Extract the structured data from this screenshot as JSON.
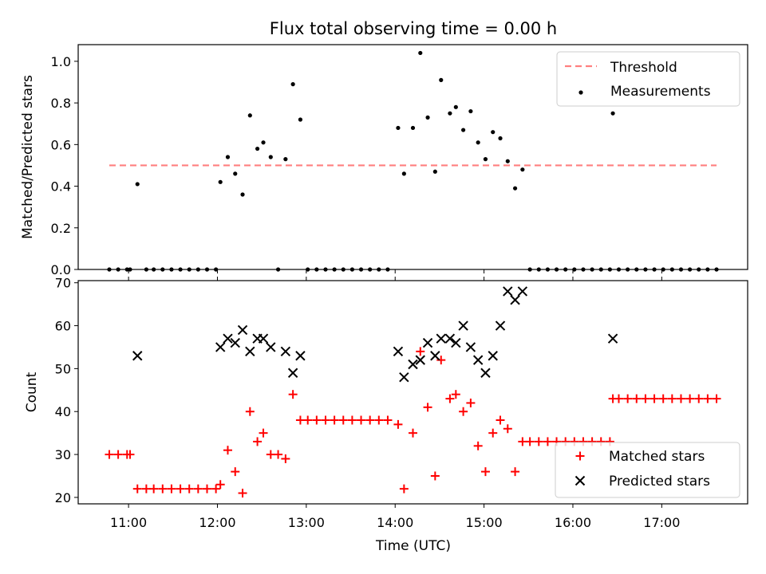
{
  "chart_data": [
    {
      "type": "scatter",
      "title": "Flux total observing time = 0.00 h",
      "xlabel": "",
      "ylabel": "Matched/Predicted stars",
      "xlim": [
        "10:26",
        "17:58"
      ],
      "ylim": [
        0,
        1.08
      ],
      "yticks": [
        0.0,
        0.2,
        0.4,
        0.6,
        0.8,
        1.0
      ],
      "ytick_labels": [
        "0.0",
        "0.2",
        "0.4",
        "0.6",
        "0.8",
        "1.0"
      ],
      "legend_position": "upper right",
      "grid": false,
      "series": [
        {
          "name": "Threshold",
          "kind": "dashed-line",
          "color": "#ff7f7f",
          "x": [
            "10:47",
            "17:37"
          ],
          "y": [
            0.5,
            0.5
          ]
        },
        {
          "name": "Measurements",
          "kind": "dots",
          "color": "#000000",
          "points": [
            [
              "10:47",
              0
            ],
            [
              "10:53",
              0
            ],
            [
              "10:59",
              0
            ],
            [
              "11:01",
              0
            ],
            [
              "11:06",
              0.41
            ],
            [
              "11:12",
              0
            ],
            [
              "11:17",
              0
            ],
            [
              "11:23",
              0
            ],
            [
              "11:29",
              0
            ],
            [
              "11:35",
              0
            ],
            [
              "11:41",
              0
            ],
            [
              "11:47",
              0
            ],
            [
              "11:53",
              0
            ],
            [
              "11:59",
              0
            ],
            [
              "12:02",
              0.42
            ],
            [
              "12:07",
              0.54
            ],
            [
              "12:12",
              0.46
            ],
            [
              "12:17",
              0.36
            ],
            [
              "12:22",
              0.74
            ],
            [
              "12:27",
              0.58
            ],
            [
              "12:31",
              0.61
            ],
            [
              "12:36",
              0.54
            ],
            [
              "12:41",
              0
            ],
            [
              "12:46",
              0.53
            ],
            [
              "12:51",
              0.89
            ],
            [
              "12:56",
              0.72
            ],
            [
              "13:01",
              0
            ],
            [
              "13:07",
              0
            ],
            [
              "13:13",
              0
            ],
            [
              "13:19",
              0
            ],
            [
              "13:25",
              0
            ],
            [
              "13:31",
              0
            ],
            [
              "13:37",
              0
            ],
            [
              "13:43",
              0
            ],
            [
              "13:49",
              0
            ],
            [
              "13:55",
              0
            ],
            [
              "14:02",
              0.68
            ],
            [
              "14:06",
              0.46
            ],
            [
              "14:12",
              0.68
            ],
            [
              "14:17",
              1.04
            ],
            [
              "14:22",
              0.73
            ],
            [
              "14:27",
              0.47
            ],
            [
              "14:31",
              0.91
            ],
            [
              "14:37",
              0.75
            ],
            [
              "14:41",
              0.78
            ],
            [
              "14:46",
              0.67
            ],
            [
              "14:51",
              0.76
            ],
            [
              "14:56",
              0.61
            ],
            [
              "15:01",
              0.53
            ],
            [
              "15:06",
              0.66
            ],
            [
              "15:11",
              0.63
            ],
            [
              "15:16",
              0.52
            ],
            [
              "15:21",
              0.39
            ],
            [
              "15:26",
              0.48
            ],
            [
              "15:31",
              0
            ],
            [
              "15:37",
              0
            ],
            [
              "15:43",
              0
            ],
            [
              "15:49",
              0
            ],
            [
              "15:55",
              0
            ],
            [
              "16:01",
              0
            ],
            [
              "16:07",
              0
            ],
            [
              "16:13",
              0
            ],
            [
              "16:19",
              0
            ],
            [
              "16:25",
              0
            ],
            [
              "16:27",
              0.75
            ],
            [
              "16:31",
              0
            ],
            [
              "16:37",
              0
            ],
            [
              "16:43",
              0
            ],
            [
              "16:49",
              0
            ],
            [
              "16:55",
              0
            ],
            [
              "17:01",
              0
            ],
            [
              "17:07",
              0
            ],
            [
              "17:13",
              0
            ],
            [
              "17:19",
              0
            ],
            [
              "17:25",
              0
            ],
            [
              "17:31",
              0
            ],
            [
              "17:37",
              0
            ]
          ]
        }
      ]
    },
    {
      "type": "scatter",
      "title": "",
      "xlabel": "Time (UTC)",
      "ylabel": "Count",
      "xlim": [
        "10:26",
        "17:58"
      ],
      "ylim": [
        18.5,
        70.5
      ],
      "yticks": [
        20,
        30,
        40,
        50,
        60,
        70
      ],
      "ytick_labels": [
        "20",
        "30",
        "40",
        "50",
        "60",
        "70"
      ],
      "xticks": [
        "11:00",
        "12:00",
        "13:00",
        "14:00",
        "15:00",
        "16:00",
        "17:00"
      ],
      "xtick_labels": [
        "11:00",
        "12:00",
        "13:00",
        "14:00",
        "15:00",
        "16:00",
        "17:00"
      ],
      "legend_position": "lower right",
      "grid": false,
      "series": [
        {
          "name": "Matched stars",
          "kind": "plus",
          "color": "#ff0000",
          "points": [
            [
              "10:47",
              30
            ],
            [
              "10:53",
              30
            ],
            [
              "10:59",
              30
            ],
            [
              "11:01",
              30
            ],
            [
              "11:06",
              22
            ],
            [
              "11:12",
              22
            ],
            [
              "11:17",
              22
            ],
            [
              "11:23",
              22
            ],
            [
              "11:29",
              22
            ],
            [
              "11:35",
              22
            ],
            [
              "11:41",
              22
            ],
            [
              "11:47",
              22
            ],
            [
              "11:53",
              22
            ],
            [
              "11:59",
              22
            ],
            [
              "12:02",
              23
            ],
            [
              "12:07",
              31
            ],
            [
              "12:12",
              26
            ],
            [
              "12:17",
              21
            ],
            [
              "12:22",
              40
            ],
            [
              "12:27",
              33
            ],
            [
              "12:31",
              35
            ],
            [
              "12:36",
              30
            ],
            [
              "12:41",
              30
            ],
            [
              "12:46",
              29
            ],
            [
              "12:51",
              44
            ],
            [
              "12:56",
              38
            ],
            [
              "13:01",
              38
            ],
            [
              "13:07",
              38
            ],
            [
              "13:13",
              38
            ],
            [
              "13:19",
              38
            ],
            [
              "13:25",
              38
            ],
            [
              "13:31",
              38
            ],
            [
              "13:37",
              38
            ],
            [
              "13:43",
              38
            ],
            [
              "13:49",
              38
            ],
            [
              "13:55",
              38
            ],
            [
              "14:02",
              37
            ],
            [
              "14:06",
              22
            ],
            [
              "14:12",
              35
            ],
            [
              "14:17",
              54
            ],
            [
              "14:22",
              41
            ],
            [
              "14:27",
              25
            ],
            [
              "14:31",
              52
            ],
            [
              "14:37",
              43
            ],
            [
              "14:41",
              44
            ],
            [
              "14:46",
              40
            ],
            [
              "14:51",
              42
            ],
            [
              "14:56",
              32
            ],
            [
              "15:01",
              26
            ],
            [
              "15:06",
              35
            ],
            [
              "15:11",
              38
            ],
            [
              "15:16",
              36
            ],
            [
              "15:21",
              26
            ],
            [
              "15:26",
              33
            ],
            [
              "15:31",
              33
            ],
            [
              "15:37",
              33
            ],
            [
              "15:43",
              33
            ],
            [
              "15:49",
              33
            ],
            [
              "15:55",
              33
            ],
            [
              "16:01",
              33
            ],
            [
              "16:07",
              33
            ],
            [
              "16:13",
              33
            ],
            [
              "16:19",
              33
            ],
            [
              "16:25",
              33
            ],
            [
              "16:27",
              43
            ],
            [
              "16:31",
              43
            ],
            [
              "16:37",
              43
            ],
            [
              "16:43",
              43
            ],
            [
              "16:49",
              43
            ],
            [
              "16:55",
              43
            ],
            [
              "17:01",
              43
            ],
            [
              "17:07",
              43
            ],
            [
              "17:13",
              43
            ],
            [
              "17:19",
              43
            ],
            [
              "17:25",
              43
            ],
            [
              "17:31",
              43
            ],
            [
              "17:37",
              43
            ]
          ]
        },
        {
          "name": "Predicted stars",
          "kind": "cross",
          "color": "#000000",
          "points": [
            [
              "11:06",
              53
            ],
            [
              "12:02",
              55
            ],
            [
              "12:07",
              57
            ],
            [
              "12:12",
              56
            ],
            [
              "12:17",
              59
            ],
            [
              "12:22",
              54
            ],
            [
              "12:27",
              57
            ],
            [
              "12:31",
              57
            ],
            [
              "12:36",
              55
            ],
            [
              "12:46",
              54
            ],
            [
              "12:51",
              49
            ],
            [
              "12:56",
              53
            ],
            [
              "14:02",
              54
            ],
            [
              "14:06",
              48
            ],
            [
              "14:12",
              51
            ],
            [
              "14:17",
              52
            ],
            [
              "14:22",
              56
            ],
            [
              "14:27",
              53
            ],
            [
              "14:31",
              57
            ],
            [
              "14:37",
              57
            ],
            [
              "14:41",
              56
            ],
            [
              "14:46",
              60
            ],
            [
              "14:51",
              55
            ],
            [
              "14:56",
              52
            ],
            [
              "15:01",
              49
            ],
            [
              "15:06",
              53
            ],
            [
              "15:11",
              60
            ],
            [
              "15:16",
              68
            ],
            [
              "15:21",
              66
            ],
            [
              "15:26",
              68
            ],
            [
              "16:27",
              57
            ]
          ]
        }
      ]
    }
  ]
}
